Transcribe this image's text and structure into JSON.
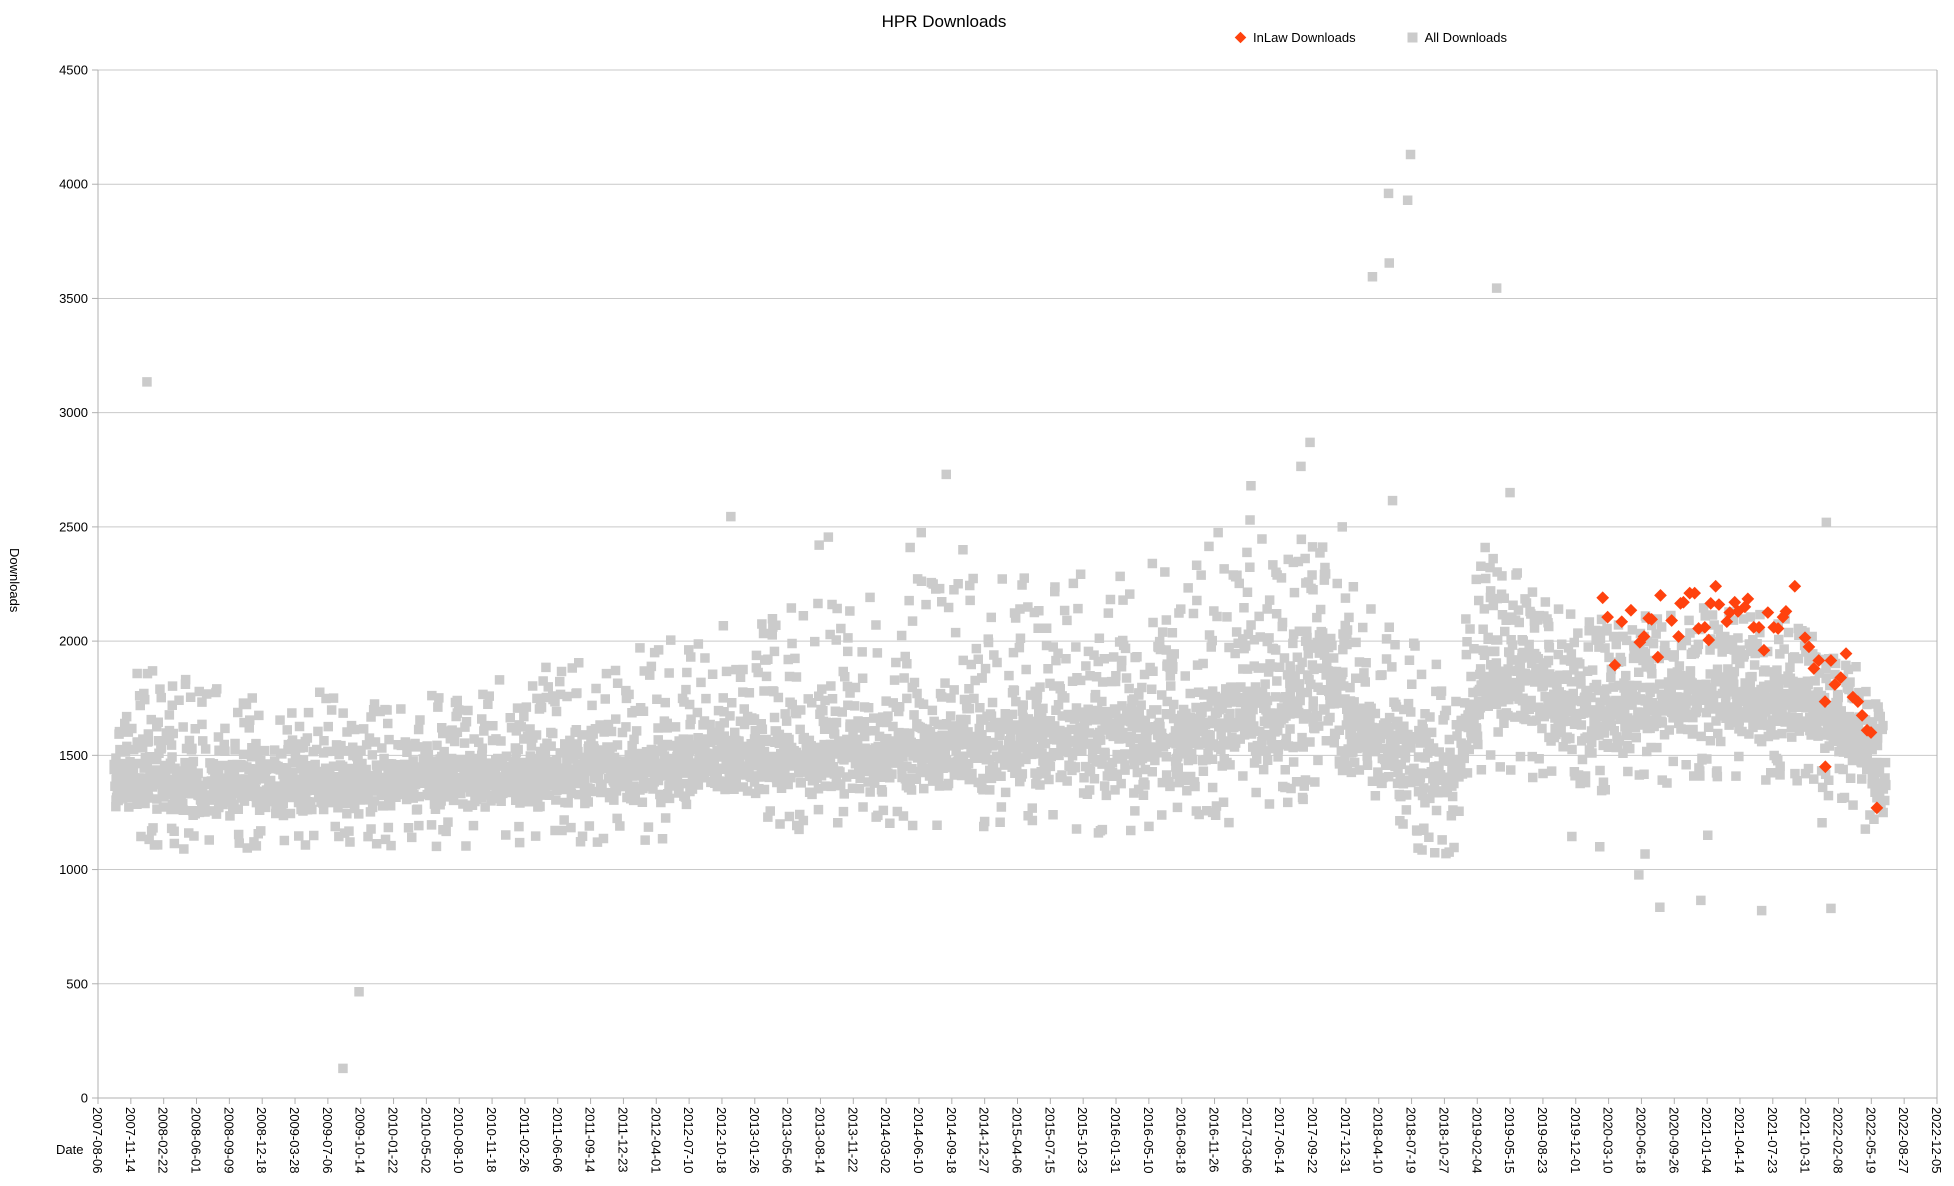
{
  "chart_data": {
    "type": "scatter",
    "title": "HPR Downloads",
    "xlabel": "Date",
    "ylabel": "Downloads",
    "legend_position": "top-right",
    "grid": true,
    "colors": {
      "inlaw": "#ff420e",
      "all": "#cbcbcb",
      "grid": "#c9c9c9",
      "axis": "#b0b0b0",
      "text": "#000000",
      "background": "#ffffff"
    },
    "y_axis": {
      "min": 0,
      "max": 4500,
      "tick_step": 500,
      "tick_labels": [
        "0",
        "500",
        "1000",
        "1500",
        "2000",
        "2500",
        "3000",
        "3500",
        "4000",
        "4500"
      ]
    },
    "x_axis": {
      "start_date": "2007-08-06",
      "end_date": "2022-12-05",
      "tick_interval_days": 100,
      "tick_labels": [
        "2007-08-06",
        "2007-11-14",
        "2008-02-22",
        "2008-06-01",
        "2008-09-09",
        "2008-12-18",
        "2009-03-28",
        "2009-07-06",
        "2009-10-14",
        "2010-01-22",
        "2010-05-02",
        "2010-08-10",
        "2010-11-18",
        "2011-02-26",
        "2011-06-06",
        "2011-09-14",
        "2011-12-23",
        "2012-04-01",
        "2012-07-10",
        "2012-10-18",
        "2013-01-26",
        "2013-05-06",
        "2013-08-14",
        "2013-11-22",
        "2014-03-02",
        "2014-06-10",
        "2014-09-18",
        "2014-12-27",
        "2015-04-06",
        "2015-07-15",
        "2015-10-23",
        "2016-01-31",
        "2016-05-10",
        "2016-08-18",
        "2016-11-26",
        "2017-03-06",
        "2017-06-14",
        "2017-09-22",
        "2017-12-31",
        "2018-04-10",
        "2018-07-19",
        "2018-10-27",
        "2019-02-04",
        "2019-05-15",
        "2019-08-23",
        "2019-12-01",
        "2020-03-10",
        "2020-06-18",
        "2020-09-26",
        "2021-01-04",
        "2021-04-14",
        "2021-07-23",
        "2021-10-31",
        "2022-02-08",
        "2022-05-19",
        "2022-08-27",
        "2022-12-05"
      ]
    },
    "series": [
      {
        "name": "InLaw Downloads",
        "marker": "diamond",
        "marker_size": 9,
        "color": "#ff420e",
        "points": [
          [
            "2020-02-21",
            2190
          ],
          [
            "2020-03-07",
            2105
          ],
          [
            "2020-03-29",
            1895
          ],
          [
            "2020-04-19",
            2085
          ],
          [
            "2020-05-17",
            2135
          ],
          [
            "2020-06-13",
            1995
          ],
          [
            "2020-06-26",
            2020
          ],
          [
            "2020-07-10",
            2100
          ],
          [
            "2020-07-19",
            2095
          ],
          [
            "2020-08-07",
            1930
          ],
          [
            "2020-08-15",
            2200
          ],
          [
            "2020-09-18",
            2090
          ],
          [
            "2020-10-09",
            2020
          ],
          [
            "2020-10-15",
            2165
          ],
          [
            "2020-10-24",
            2170
          ],
          [
            "2020-11-12",
            2210
          ],
          [
            "2020-11-27",
            2210
          ],
          [
            "2020-12-09",
            2055
          ],
          [
            "2020-12-28",
            2060
          ],
          [
            "2021-01-09",
            2005
          ],
          [
            "2021-01-15",
            2165
          ],
          [
            "2021-01-30",
            2240
          ],
          [
            "2021-02-09",
            2160
          ],
          [
            "2021-03-05",
            2085
          ],
          [
            "2021-03-14",
            2125
          ],
          [
            "2021-03-29",
            2170
          ],
          [
            "2021-04-08",
            2130
          ],
          [
            "2021-04-29",
            2150
          ],
          [
            "2021-05-08",
            2185
          ],
          [
            "2021-05-26",
            2060
          ],
          [
            "2021-06-11",
            2060
          ],
          [
            "2021-06-26",
            1960
          ],
          [
            "2021-07-08",
            2125
          ],
          [
            "2021-07-26",
            2060
          ],
          [
            "2021-08-08",
            2055
          ],
          [
            "2021-08-23",
            2105
          ],
          [
            "2021-09-01",
            2130
          ],
          [
            "2021-09-28",
            2240
          ],
          [
            "2021-10-29",
            2015
          ],
          [
            "2021-11-10",
            1975
          ],
          [
            "2021-11-25",
            1880
          ],
          [
            "2021-12-10",
            1915
          ],
          [
            "2021-12-29",
            1735
          ],
          [
            "2021-12-30",
            1450
          ],
          [
            "2022-01-16",
            1915
          ],
          [
            "2022-01-28",
            1810
          ],
          [
            "2022-02-15",
            1840
          ],
          [
            "2022-03-03",
            1945
          ],
          [
            "2022-03-24",
            1755
          ],
          [
            "2022-04-08",
            1735
          ],
          [
            "2022-04-21",
            1675
          ],
          [
            "2022-05-06",
            1610
          ],
          [
            "2022-05-18",
            1600
          ],
          [
            "2022-06-05",
            1270
          ]
        ]
      },
      {
        "name": "All Downloads",
        "marker": "square",
        "marker_size": 9.5,
        "color": "#cbcbcb",
        "approx_point_count": 4700,
        "generation": {
          "seed": 1337,
          "cadence_days": 1,
          "skip_probability": 0.12,
          "below_core_probability": 0.04,
          "core_probability": 0.78,
          "upper_tail_exponent": 1.6
        },
        "band_profile": [
          {
            "date": "2007-09-25",
            "lo": 1250,
            "hi": 1600,
            "top": 1850,
            "density": 0.9
          },
          {
            "date": "2008-01-03",
            "lo": 1230,
            "hi": 1540,
            "top": 1900,
            "density": 1
          },
          {
            "date": "2008-09-09",
            "lo": 1220,
            "hi": 1500,
            "top": 1780,
            "density": 1
          },
          {
            "date": "2009-07-06",
            "lo": 1230,
            "hi": 1510,
            "top": 1800,
            "density": 1
          },
          {
            "date": "2010-05-02",
            "lo": 1250,
            "hi": 1540,
            "top": 1800,
            "density": 1
          },
          {
            "date": "2011-02-26",
            "lo": 1250,
            "hi": 1570,
            "top": 1870,
            "density": 1
          },
          {
            "date": "2011-12-23",
            "lo": 1270,
            "hi": 1600,
            "top": 1950,
            "density": 1
          },
          {
            "date": "2012-10-18",
            "lo": 1290,
            "hi": 1640,
            "top": 2080,
            "density": 1
          },
          {
            "date": "2013-08-14",
            "lo": 1310,
            "hi": 1680,
            "top": 2180,
            "density": 1
          },
          {
            "date": "2014-06-10",
            "lo": 1320,
            "hi": 1720,
            "top": 2280,
            "density": 1
          },
          {
            "date": "2015-04-06",
            "lo": 1330,
            "hi": 1770,
            "top": 2300,
            "density": 1
          },
          {
            "date": "2016-01-31",
            "lo": 1300,
            "hi": 1820,
            "top": 2330,
            "density": 1
          },
          {
            "date": "2016-11-26",
            "lo": 1340,
            "hi": 1900,
            "top": 2400,
            "density": 1
          },
          {
            "date": "2017-06-14",
            "lo": 1400,
            "hi": 2050,
            "top": 2480,
            "density": 1
          },
          {
            "date": "2017-11-01",
            "lo": 1470,
            "hi": 2280,
            "top": 2520,
            "density": 1
          },
          {
            "date": "2018-01-20",
            "lo": 1350,
            "hi": 1900,
            "top": 2300,
            "density": 1
          },
          {
            "date": "2018-05-30",
            "lo": 1260,
            "hi": 1700,
            "top": 2050,
            "density": 0.9
          },
          {
            "date": "2018-11-16",
            "lo": 1200,
            "hi": 1640,
            "top": 1900,
            "density": 0.75
          },
          {
            "date": "2019-02-14",
            "lo": 1550,
            "hi": 2100,
            "top": 2400,
            "density": 1
          },
          {
            "date": "2019-06-14",
            "lo": 1580,
            "hi": 2080,
            "top": 2350,
            "density": 1
          },
          {
            "date": "2019-11-11",
            "lo": 1470,
            "hi": 1900,
            "top": 2120,
            "density": 1
          },
          {
            "date": "2020-04-29",
            "lo": 1500,
            "hi": 1900,
            "top": 2100,
            "density": 1
          },
          {
            "date": "2021-01-04",
            "lo": 1540,
            "hi": 1950,
            "top": 2150,
            "density": 1
          },
          {
            "date": "2021-09-11",
            "lo": 1540,
            "hi": 1930,
            "top": 2100,
            "density": 1
          },
          {
            "date": "2022-02-08",
            "lo": 1440,
            "hi": 1840,
            "top": 2000,
            "density": 1
          },
          {
            "date": "2022-05-19",
            "lo": 1290,
            "hi": 1640,
            "top": 1800,
            "density": 1
          },
          {
            "date": "2022-07-03",
            "lo": 1240,
            "hi": 1480,
            "top": 1600,
            "density": 1
          }
        ],
        "outliers_high": [
          [
            "2008-01-02",
            3135
          ],
          [
            "2012-11-14",
            2545
          ],
          [
            "2013-08-10",
            2420
          ],
          [
            "2013-09-07",
            2455
          ],
          [
            "2014-05-14",
            2410
          ],
          [
            "2014-06-17",
            2475
          ],
          [
            "2014-09-01",
            2730
          ],
          [
            "2014-10-22",
            2400
          ],
          [
            "2016-11-09",
            2415
          ],
          [
            "2016-12-07",
            2475
          ],
          [
            "2017-03-14",
            2530
          ],
          [
            "2017-03-17",
            2680
          ],
          [
            "2017-08-16",
            2765
          ],
          [
            "2017-09-13",
            2870
          ],
          [
            "2017-12-20",
            2500
          ],
          [
            "2018-03-22",
            3595
          ],
          [
            "2018-05-10",
            3960
          ],
          [
            "2018-05-12",
            3655
          ],
          [
            "2018-05-22",
            2615
          ],
          [
            "2018-07-07",
            3930
          ],
          [
            "2018-07-16",
            4130
          ],
          [
            "2019-02-28",
            2410
          ],
          [
            "2019-04-04",
            3545
          ],
          [
            "2019-05-15",
            2650
          ],
          [
            "2022-01-02",
            2520
          ]
        ],
        "outliers_low": [
          [
            "2009-08-21",
            130
          ],
          [
            "2009-10-09",
            465
          ],
          [
            "2011-10-05",
            1120
          ],
          [
            "2012-04-20",
            1135
          ],
          [
            "2018-10-20",
            1130
          ],
          [
            "2019-11-19",
            1145
          ],
          [
            "2020-02-12",
            1100
          ],
          [
            "2020-06-10",
            977
          ],
          [
            "2020-06-29",
            1068
          ],
          [
            "2020-08-13",
            835
          ],
          [
            "2020-12-16",
            865
          ],
          [
            "2021-01-06",
            1150
          ],
          [
            "2021-06-19",
            820
          ],
          [
            "2021-12-20",
            1205
          ],
          [
            "2022-01-16",
            830
          ],
          [
            "2022-05-27",
            1220
          ],
          [
            "2022-06-24",
            1250
          ]
        ]
      }
    ]
  }
}
